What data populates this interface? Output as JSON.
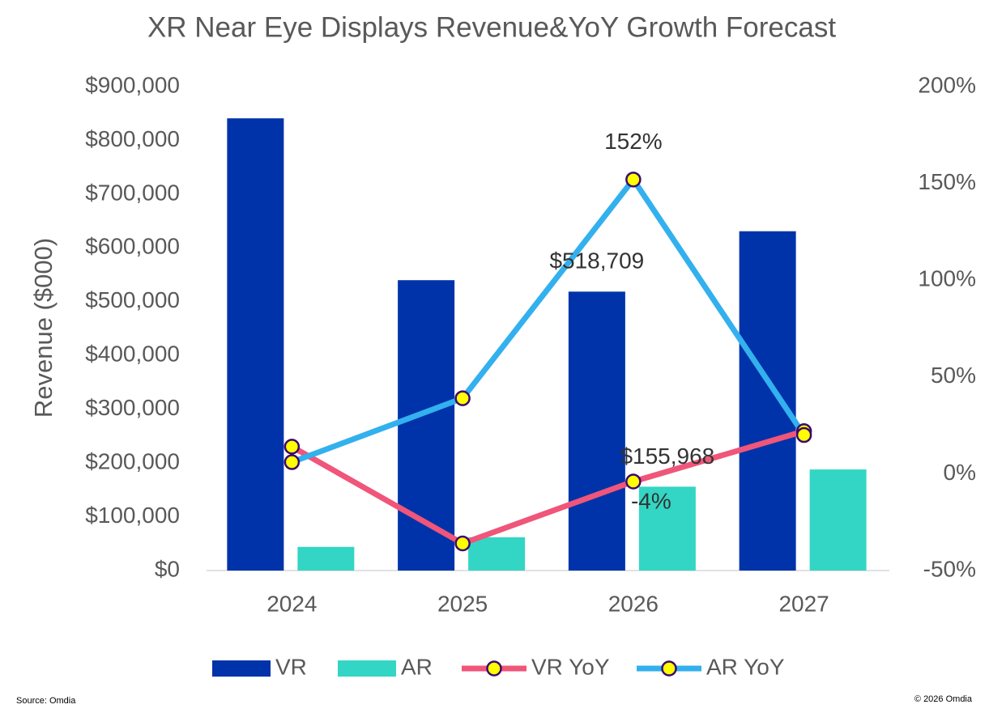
{
  "chart_data": {
    "type": "bar_line",
    "title": "XR Near Eye Displays Revenue&YoY Growth Forecast",
    "y_label": "Revenue ($000)",
    "source": "Source: Omdia",
    "copyright": "© 2026 Omdia",
    "categories": [
      "2024",
      "2025",
      "2026",
      "2027"
    ],
    "ylim": [
      0,
      900000
    ],
    "yticks": [
      {
        "value": 0,
        "label": "$0"
      },
      {
        "value": 100000,
        "label": "$100,000"
      },
      {
        "value": 200000,
        "label": "$200,000"
      },
      {
        "value": 300000,
        "label": "$300,000"
      },
      {
        "value": 400000,
        "label": "$400,000"
      },
      {
        "value": 500000,
        "label": "$500,000"
      },
      {
        "value": 600000,
        "label": "$600,000"
      },
      {
        "value": 700000,
        "label": "$700,000"
      },
      {
        "value": 800000,
        "label": "$800,000"
      },
      {
        "value": 900000,
        "label": "$900,000"
      }
    ],
    "y2lim": [
      -50,
      200
    ],
    "y2ticks": [
      {
        "value": -50,
        "label": "-50%"
      },
      {
        "value": 0,
        "label": "0%"
      },
      {
        "value": 50,
        "label": "50%"
      },
      {
        "value": 100,
        "label": "100%"
      },
      {
        "value": 150,
        "label": "150%"
      },
      {
        "value": 200,
        "label": "200%"
      }
    ],
    "grid": false,
    "legend": "bottom",
    "series": [
      {
        "name": "VR",
        "type": "bar",
        "color": "#0033aa",
        "values": [
          841000,
          540000,
          518709,
          631000
        ],
        "value_labels": [
          null,
          null,
          "$518,709",
          null
        ]
      },
      {
        "name": "AR",
        "type": "bar",
        "color": "#33d6c4",
        "values": [
          44000,
          62000,
          155968,
          188000
        ],
        "value_labels": [
          null,
          null,
          "$155,968",
          null
        ]
      },
      {
        "name": "VR YoY",
        "type": "line",
        "axis": "y2",
        "color": "#f0557a",
        "marker_color": "#ffff00",
        "values": [
          14,
          -36,
          -4,
          22
        ],
        "value_labels": [
          null,
          null,
          "-4%",
          null
        ]
      },
      {
        "name": "AR YoY",
        "type": "line",
        "axis": "y2",
        "color": "#33b0ee",
        "marker_color": "#ffff00",
        "values": [
          6,
          39,
          152,
          20
        ],
        "value_labels": [
          null,
          null,
          "152%",
          null
        ]
      }
    ]
  }
}
